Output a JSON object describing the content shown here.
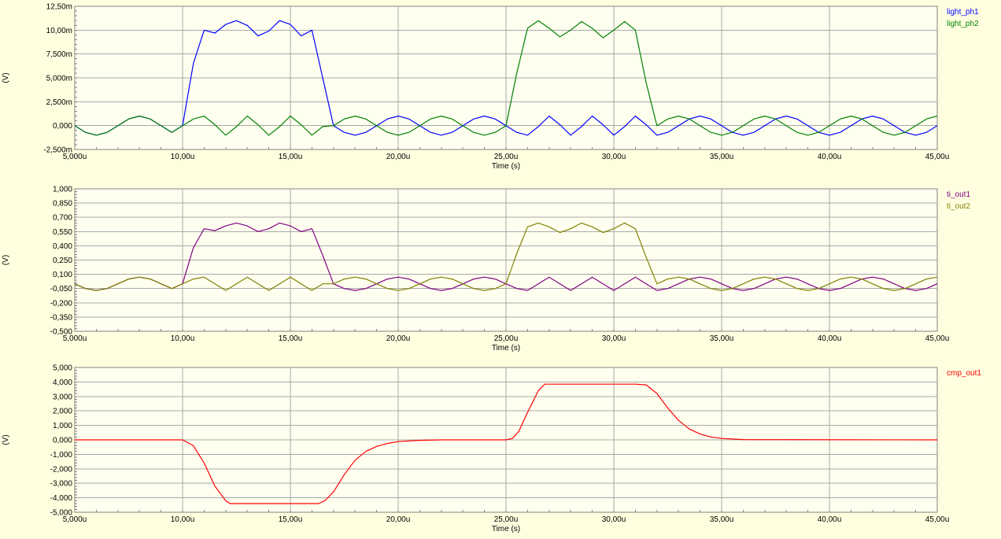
{
  "chart_data": [
    {
      "type": "line",
      "xlabel": "Time (s)",
      "ylabel": "(V)",
      "xlim": [
        5,
        45
      ],
      "ylim": [
        -2.5,
        12.5
      ],
      "grid": true,
      "legend_position": "top-right",
      "x_ticks": [
        "5,000u",
        "10,00u",
        "15,00u",
        "20,00u",
        "25,00u",
        "30,00u",
        "35,00u",
        "40,00u",
        "45,00u"
      ],
      "y_ticks": [
        "12,50m",
        "10,00m",
        "7,500m",
        "5,000m",
        "2,500m",
        "0,000",
        "-2,500m"
      ],
      "series": [
        {
          "name": "light_ph1",
          "color": "#0000ff",
          "x": [
            5,
            5.5,
            6,
            6.5,
            7,
            7.5,
            8,
            8.5,
            9,
            9.5,
            10,
            10.5,
            11,
            11.5,
            12,
            12.5,
            13,
            13.5,
            14,
            14.5,
            15,
            15.5,
            16,
            16.5,
            17,
            17.5,
            18,
            18.5,
            19,
            19.5,
            20,
            20.5,
            21,
            21.5,
            22,
            22.5,
            23,
            23.5,
            24,
            24.5,
            25,
            25.5,
            26,
            26.5,
            27,
            27.5,
            28,
            28.5,
            29,
            29.5,
            30,
            30.5,
            31,
            31.5,
            32,
            32.5,
            33,
            33.5,
            34,
            34.5,
            35,
            35.5,
            36,
            36.5,
            37,
            37.5,
            38,
            38.5,
            39,
            39.5,
            40,
            40.5,
            41,
            41.5,
            42,
            42.5,
            43,
            43.5,
            44,
            44.5,
            45
          ],
          "y": [
            0,
            -0.7,
            -1,
            -0.7,
            0,
            0.7,
            1,
            0.7,
            0,
            -0.7,
            0,
            6.5,
            10,
            9.7,
            10.6,
            11,
            10.5,
            9.4,
            9.9,
            11,
            10.6,
            9.4,
            10,
            5,
            0,
            -0.7,
            -1,
            -0.7,
            0,
            0.7,
            1,
            0.7,
            0,
            -0.7,
            -1,
            -0.7,
            0,
            0.7,
            1,
            0.7,
            0,
            -0.7,
            -1,
            -0.1,
            1,
            0.1,
            -1,
            -0.1,
            1,
            0.1,
            -1,
            -0.1,
            1,
            0.1,
            -1,
            -0.7,
            0,
            0.7,
            1,
            0.7,
            0,
            -0.7,
            -1,
            -0.7,
            0,
            0.7,
            1,
            0.7,
            0,
            -0.7,
            -1,
            -0.7,
            0,
            0.7,
            1,
            0.7,
            0,
            -0.7,
            -1,
            -0.7,
            0
          ]
        },
        {
          "name": "light_ph2",
          "color": "#008000",
          "x": [
            5,
            5.5,
            6,
            6.5,
            7,
            7.5,
            8,
            8.5,
            9,
            9.5,
            10,
            10.5,
            11,
            11.5,
            12,
            12.5,
            13,
            13.5,
            14,
            14.5,
            15,
            15.5,
            16,
            16.5,
            17,
            17.5,
            18,
            18.5,
            19,
            19.5,
            20,
            20.5,
            21,
            21.5,
            22,
            22.5,
            23,
            23.5,
            24,
            24.5,
            25,
            25.5,
            26,
            26.5,
            27,
            27.5,
            28,
            28.5,
            29,
            29.5,
            30,
            30.5,
            31,
            31.5,
            32,
            32.5,
            33,
            33.5,
            34,
            34.5,
            35,
            35.5,
            36,
            36.5,
            37,
            37.5,
            38,
            38.5,
            39,
            39.5,
            40,
            40.5,
            41,
            41.5,
            42,
            42.5,
            43,
            43.5,
            44,
            44.5,
            45
          ],
          "y": [
            0,
            -0.7,
            -1,
            -0.7,
            0,
            0.7,
            1,
            0.7,
            0,
            -0.7,
            0,
            0.7,
            1,
            0.1,
            -1,
            -0.1,
            1,
            0.1,
            -1,
            -0.1,
            1,
            0.1,
            -1,
            -0.1,
            0,
            0.7,
            1,
            0.7,
            0,
            -0.7,
            -1,
            -0.7,
            0,
            0.7,
            1,
            0.7,
            0,
            -0.7,
            -1,
            -0.7,
            0,
            5.5,
            10.2,
            11,
            10.2,
            9.3,
            10,
            10.9,
            10.2,
            9.2,
            10,
            10.9,
            10,
            4.5,
            0,
            0.7,
            1,
            0.7,
            0,
            -0.7,
            -1,
            -0.7,
            0,
            0.7,
            1,
            0.7,
            0,
            -0.7,
            -1,
            -0.7,
            0,
            0.7,
            1,
            0.7,
            0,
            -0.7,
            -1,
            -0.7,
            0,
            0.7,
            1
          ]
        }
      ]
    },
    {
      "type": "line",
      "xlabel": "Time (s)",
      "ylabel": "(V)",
      "xlim": [
        5,
        45
      ],
      "ylim": [
        -0.5,
        1.0
      ],
      "grid": true,
      "legend_position": "top-right",
      "x_ticks": [
        "5,000u",
        "10,00u",
        "15,00u",
        "20,00u",
        "25,00u",
        "30,00u",
        "35,00u",
        "40,00u",
        "45,00u"
      ],
      "y_ticks": [
        "1,000",
        "0,850",
        "0,700",
        "0,550",
        "0,400",
        "0,250",
        "0,100",
        "-0,050",
        "-0,200",
        "-0,350",
        "-0,500"
      ],
      "series": [
        {
          "name": "ti_out1",
          "color": "#800080",
          "x": [
            5,
            5.5,
            6,
            6.5,
            7,
            7.5,
            8,
            8.5,
            9,
            9.5,
            10,
            10.5,
            11,
            11.5,
            12,
            12.5,
            13,
            13.5,
            14,
            14.5,
            15,
            15.5,
            16,
            16.5,
            17,
            17.5,
            18,
            18.5,
            19,
            19.5,
            20,
            20.5,
            21,
            21.5,
            22,
            22.5,
            23,
            23.5,
            24,
            24.5,
            25,
            25.5,
            26,
            26.5,
            27,
            27.5,
            28,
            28.5,
            29,
            29.5,
            30,
            30.5,
            31,
            31.5,
            32,
            32.5,
            33,
            33.5,
            34,
            34.5,
            35,
            35.5,
            36,
            36.5,
            37,
            37.5,
            38,
            38.5,
            39,
            39.5,
            40,
            40.5,
            41,
            41.5,
            42,
            42.5,
            43,
            43.5,
            44,
            44.5,
            45
          ],
          "y": [
            0,
            -0.05,
            -0.07,
            -0.05,
            0,
            0.05,
            0.07,
            0.05,
            0,
            -0.05,
            0,
            0.38,
            0.58,
            0.56,
            0.61,
            0.64,
            0.61,
            0.55,
            0.58,
            0.64,
            0.61,
            0.55,
            0.58,
            0.3,
            0,
            -0.05,
            -0.07,
            -0.05,
            0,
            0.05,
            0.07,
            0.05,
            0,
            -0.05,
            -0.07,
            -0.05,
            0,
            0.05,
            0.07,
            0.05,
            0,
            -0.05,
            -0.07,
            0,
            0.07,
            0,
            -0.07,
            0,
            0.07,
            0,
            -0.07,
            0,
            0.07,
            0,
            -0.07,
            -0.05,
            0,
            0.05,
            0.07,
            0.05,
            0,
            -0.05,
            -0.07,
            -0.05,
            0,
            0.05,
            0.07,
            0.05,
            0,
            -0.05,
            -0.07,
            -0.05,
            0,
            0.05,
            0.07,
            0.05,
            0,
            -0.05,
            -0.07,
            -0.05,
            0
          ]
        },
        {
          "name": "ti_out2",
          "color": "#808000",
          "x": [
            5,
            5.5,
            6,
            6.5,
            7,
            7.5,
            8,
            8.5,
            9,
            9.5,
            10,
            10.5,
            11,
            11.5,
            12,
            12.5,
            13,
            13.5,
            14,
            14.5,
            15,
            15.5,
            16,
            16.5,
            17,
            17.5,
            18,
            18.5,
            19,
            19.5,
            20,
            20.5,
            21,
            21.5,
            22,
            22.5,
            23,
            23.5,
            24,
            24.5,
            25,
            25.5,
            26,
            26.5,
            27,
            27.5,
            28,
            28.5,
            29,
            29.5,
            30,
            30.5,
            31,
            31.5,
            32,
            32.5,
            33,
            33.5,
            34,
            34.5,
            35,
            35.5,
            36,
            36.5,
            37,
            37.5,
            38,
            38.5,
            39,
            39.5,
            40,
            40.5,
            41,
            41.5,
            42,
            42.5,
            43,
            43.5,
            44,
            44.5,
            45
          ],
          "y": [
            0,
            -0.05,
            -0.07,
            -0.05,
            0,
            0.05,
            0.07,
            0.05,
            0,
            -0.05,
            0,
            0.05,
            0.07,
            0,
            -0.07,
            0,
            0.07,
            0,
            -0.07,
            0,
            0.07,
            0,
            -0.07,
            0,
            0,
            0.05,
            0.07,
            0.05,
            0,
            -0.05,
            -0.07,
            -0.05,
            0,
            0.05,
            0.07,
            0.05,
            0,
            -0.05,
            -0.07,
            -0.05,
            0,
            0.32,
            0.6,
            0.64,
            0.6,
            0.54,
            0.58,
            0.64,
            0.6,
            0.54,
            0.58,
            0.64,
            0.58,
            0.28,
            0,
            0.05,
            0.07,
            0.05,
            0,
            -0.05,
            -0.07,
            -0.05,
            0,
            0.05,
            0.07,
            0.05,
            0,
            -0.05,
            -0.07,
            -0.05,
            0,
            0.05,
            0.07,
            0.05,
            0,
            -0.05,
            -0.07,
            -0.05,
            0,
            0.05,
            0.07
          ]
        }
      ]
    },
    {
      "type": "line",
      "xlabel": "Time (s)",
      "ylabel": "(V)",
      "xlim": [
        5,
        45
      ],
      "ylim": [
        -5,
        5
      ],
      "grid": true,
      "legend_position": "top-right",
      "x_ticks": [
        "5,000u",
        "10,00u",
        "15,00u",
        "20,00u",
        "25,00u",
        "30,00u",
        "35,00u",
        "40,00u",
        "45,00u"
      ],
      "y_ticks": [
        "5,000",
        "4,000",
        "3,000",
        "2,000",
        "1,000",
        "0,000",
        "-1,000",
        "-2,000",
        "-3,000",
        "-4,000",
        "-5,000"
      ],
      "series": [
        {
          "name": "cmp_out1",
          "color": "#ff0000",
          "x": [
            5,
            10,
            10.5,
            11,
            11.5,
            12,
            12.2,
            13,
            14,
            15,
            16,
            16.3,
            16.6,
            17,
            17.5,
            18,
            18.5,
            19,
            19.5,
            20,
            21,
            22,
            25,
            25.3,
            25.6,
            26,
            26.5,
            26.8,
            27.5,
            28,
            29,
            30,
            31,
            31.5,
            32,
            32.5,
            33,
            33.5,
            34,
            34.5,
            35,
            36,
            45
          ],
          "y": [
            0,
            0,
            -0.4,
            -1.6,
            -3.2,
            -4.2,
            -4.4,
            -4.4,
            -4.4,
            -4.4,
            -4.4,
            -4.4,
            -4.2,
            -3.6,
            -2.4,
            -1.4,
            -0.8,
            -0.45,
            -0.25,
            -0.12,
            -0.03,
            0,
            0,
            0.1,
            0.6,
            1.9,
            3.4,
            3.85,
            3.85,
            3.85,
            3.85,
            3.85,
            3.85,
            3.8,
            3.2,
            2.2,
            1.35,
            0.75,
            0.4,
            0.2,
            0.1,
            0.02,
            0
          ]
        }
      ]
    }
  ]
}
